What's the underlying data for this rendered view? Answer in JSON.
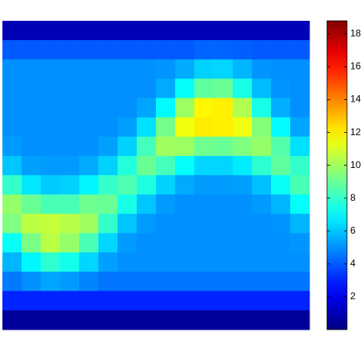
{
  "chart_data": {
    "type": "heatmap",
    "colormap": "jet",
    "z": [
      [
        1,
        1,
        1,
        1,
        1,
        1,
        1,
        1,
        1,
        1,
        1,
        1,
        1,
        1,
        1,
        1
      ],
      [
        4,
        4,
        4,
        4,
        4,
        4,
        4,
        4,
        4,
        4,
        4.2,
        4.2,
        4.1,
        4,
        4,
        4
      ],
      [
        5,
        5,
        5,
        5,
        5,
        5,
        5,
        5,
        5.1,
        5.5,
        6.2,
        6.3,
        5.7,
        5.1,
        5,
        5
      ],
      [
        5,
        5,
        5,
        5,
        5,
        5,
        5,
        5,
        5.5,
        7.1,
        8.8,
        9,
        7.5,
        5.8,
        5.1,
        5
      ],
      [
        5,
        5,
        5,
        5,
        5,
        5,
        5,
        5.4,
        7,
        9.9,
        11.9,
        12,
        10.3,
        7.5,
        5.6,
        5
      ],
      [
        5,
        5,
        5,
        5,
        5,
        5,
        5.3,
        6.5,
        9.2,
        11.5,
        12.1,
        12,
        11.5,
        9.5,
        7,
        5.4
      ],
      [
        5.2,
        5,
        5,
        5,
        5,
        5.3,
        6.2,
        8.3,
        10,
        9.9,
        9.1,
        9,
        9.4,
        9.8,
        8.6,
        6.5
      ],
      [
        6,
        5.3,
        5.2,
        5.2,
        5.5,
        6.2,
        7.7,
        9,
        8.3,
        7.1,
        6.3,
        6.3,
        6.7,
        7.9,
        8.8,
        8
      ],
      [
        8,
        6.6,
        6.1,
        6.2,
        6.9,
        8,
        8.5,
        7.6,
        6.2,
        5.5,
        5.2,
        5.2,
        5.3,
        5.9,
        7.2,
        8.4
      ],
      [
        9.8,
        9,
        8.4,
        8.4,
        9.1,
        9,
        7.5,
        6,
        5.2,
        5,
        5,
        5,
        5,
        5.2,
        5.7,
        7.1
      ],
      [
        9.4,
        10.5,
        10.7,
        10.4,
        10,
        8,
        6,
        5.2,
        5,
        5,
        5,
        5,
        5,
        5,
        5.1,
        5.7
      ],
      [
        7.2,
        9.3,
        10.5,
        9.8,
        8.4,
        6.3,
        5.2,
        5,
        5,
        5,
        5,
        5,
        5,
        5,
        5,
        5.1
      ],
      [
        5.7,
        6.9,
        7.9,
        7.4,
        6.3,
        5.3,
        5,
        5,
        5,
        5,
        5,
        5,
        5,
        5,
        5,
        5
      ],
      [
        4.6,
        5,
        5.4,
        5.2,
        4.8,
        4.5,
        4.5,
        4.5,
        4.5,
        4.5,
        4.5,
        4.5,
        4.5,
        4.5,
        4.5,
        4.5
      ],
      [
        3,
        3,
        3,
        3,
        3,
        3,
        3,
        3,
        3,
        3,
        3,
        3,
        3,
        3,
        3,
        3
      ],
      [
        0.5,
        0.5,
        0.5,
        0.5,
        0.5,
        0.5,
        0.5,
        0.5,
        0.5,
        0.5,
        0.5,
        0.5,
        0.5,
        0.5,
        0.5,
        0.5
      ]
    ],
    "clim": [
      0,
      18.8
    ],
    "cticks": [
      2,
      4,
      6,
      8,
      10,
      12,
      14,
      16,
      18
    ]
  }
}
